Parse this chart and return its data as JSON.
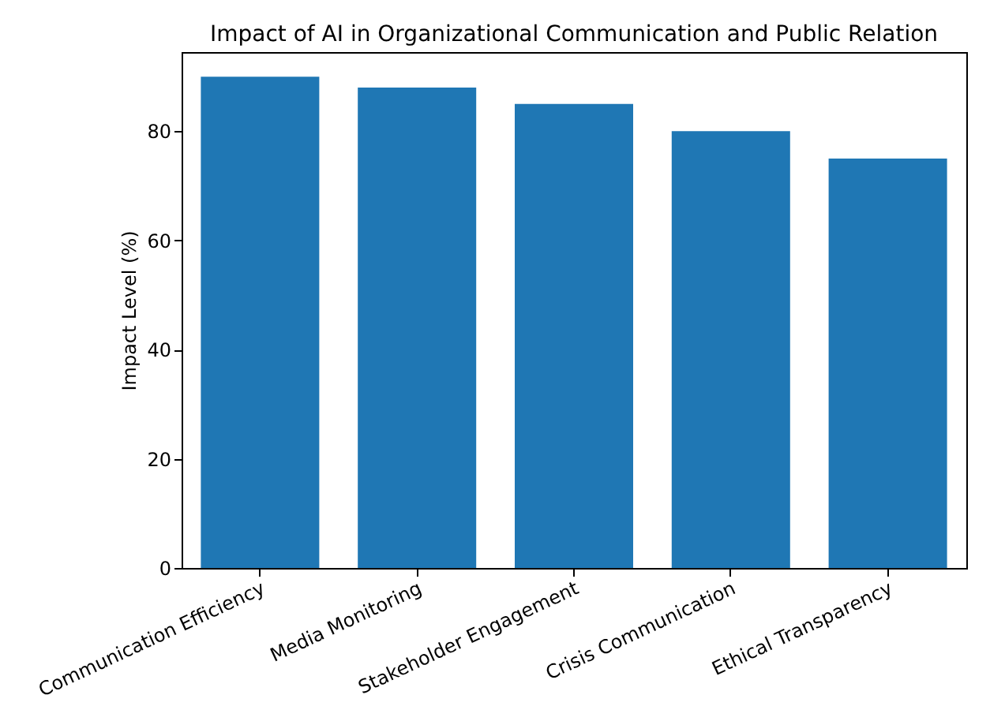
{
  "chart_data": {
    "type": "bar",
    "title": "Impact of AI in Organizational Communication and Public Relation",
    "ylabel": "Impact Level (%)",
    "categories": [
      "Communication Efficiency",
      "Media Monitoring",
      "Stakeholder Engagement",
      "Crisis Communication",
      "Ethical Transparency"
    ],
    "values": [
      90,
      88,
      85,
      80,
      75
    ],
    "color": "#1f77b4",
    "ylim": [
      0,
      94.5
    ],
    "yticks": [
      0,
      20,
      40,
      60,
      80
    ],
    "grid": false
  }
}
